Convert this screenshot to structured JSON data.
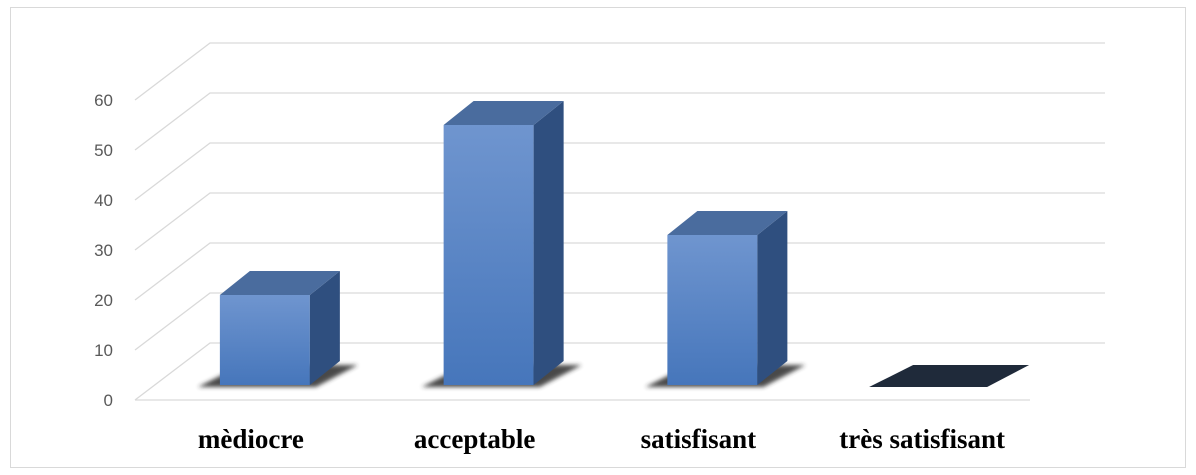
{
  "chart_data": {
    "type": "bar",
    "style": "3d-column",
    "categories": [
      "mèdiocre",
      "acceptable",
      "satisfisant",
      "très satisfisant"
    ],
    "values": [
      18,
      52,
      30,
      0
    ],
    "ylim": [
      0,
      60
    ],
    "yticks": [
      0,
      10,
      20,
      30,
      40,
      50,
      60
    ],
    "grid": true,
    "legend": "none",
    "colors": {
      "bar_front_top": "#6f95cf",
      "bar_front_bottom": "#4676bb",
      "bar_side": "#2f4f7f",
      "bar_top": "#4a6c9e",
      "zero_bar": "#1f2a3a",
      "gridline": "#d9d9d9",
      "floor_shadow": "#2b2b2b"
    }
  }
}
